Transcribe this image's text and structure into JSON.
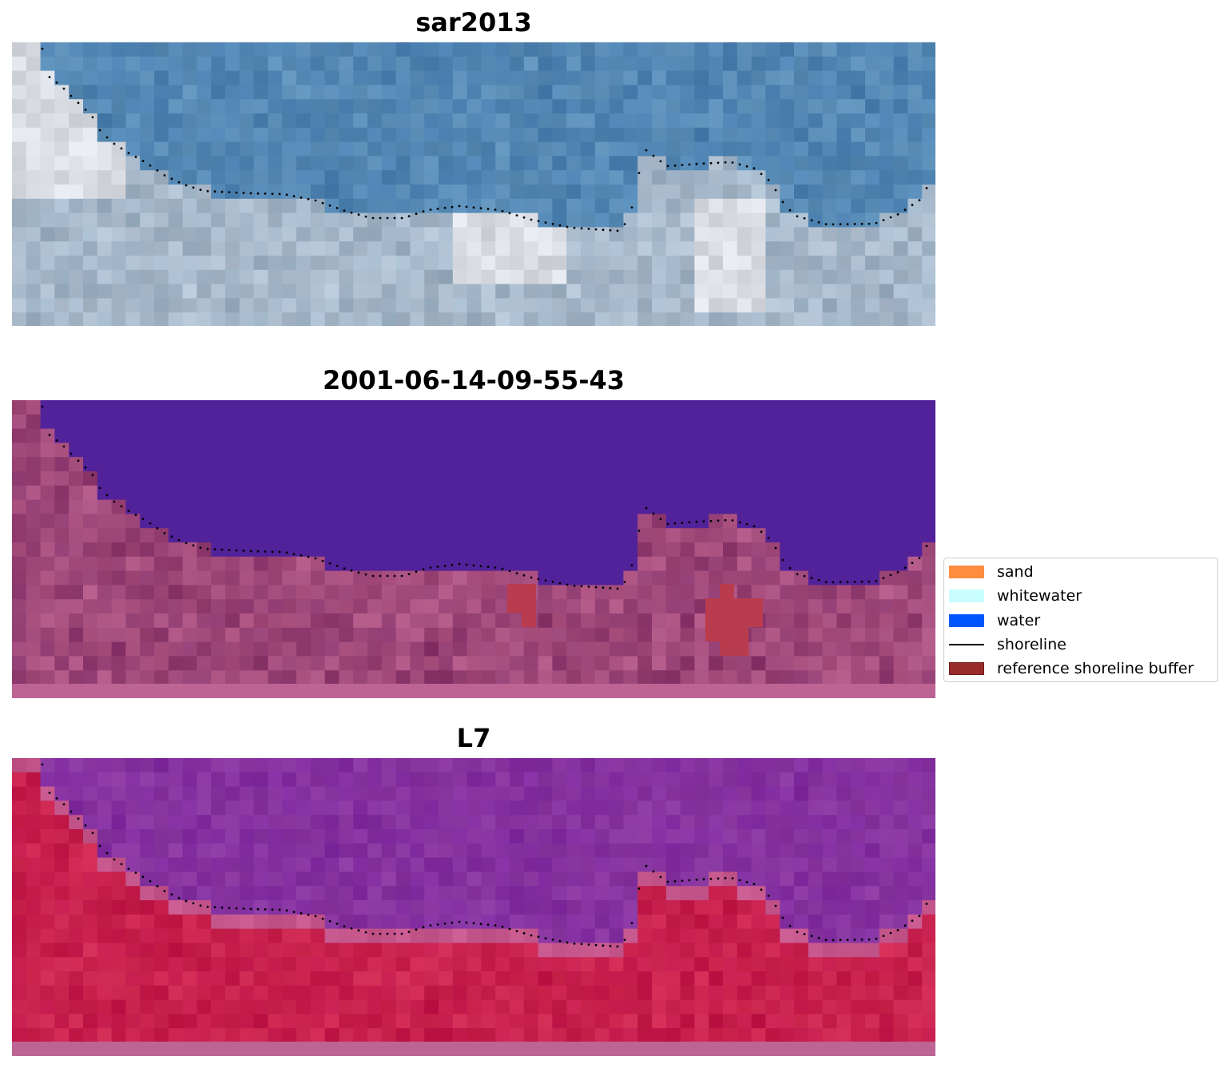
{
  "panels": [
    {
      "title": "sar2013",
      "kind": "rgb"
    },
    {
      "title": "2001-06-14-09-55-43",
      "kind": "classified"
    },
    {
      "title": "L7",
      "kind": "index"
    }
  ],
  "legend": {
    "items": [
      {
        "label": "sand",
        "color": "#ff8c3f",
        "kind": "patch"
      },
      {
        "label": "whitewater",
        "color": "#c8fefe",
        "kind": "patch"
      },
      {
        "label": "water",
        "color": "#0155fe",
        "kind": "patch"
      },
      {
        "label": "shoreline",
        "color": "#000000",
        "kind": "line"
      },
      {
        "label": "reference shoreline buffer",
        "color": "#9a2b2b",
        "kind": "patch"
      }
    ]
  },
  "colors": {
    "water_overlay": "#52229a",
    "buffer_red": "#b83c4e",
    "rgb_water": "#4a7fb0",
    "rgb_land": "#9eb2c6",
    "index_water": "#8a38a0",
    "index_land": "#c0184a",
    "bottom_strip": "#be6495"
  }
}
